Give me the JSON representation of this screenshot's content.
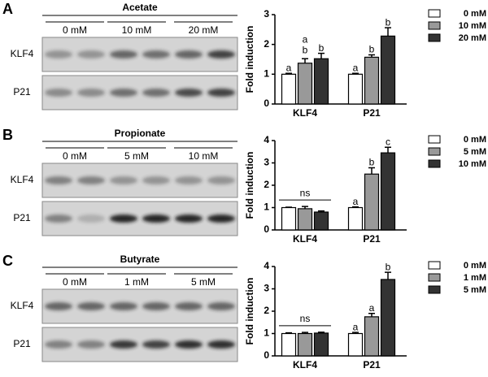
{
  "panels": [
    {
      "letter": "A",
      "treatment": "Acetate",
      "lanes": [
        "0 mM",
        "10 mM",
        "20 mM"
      ],
      "proteins": [
        "KLF4",
        "P21"
      ]
    },
    {
      "letter": "B",
      "treatment": "Propionate",
      "lanes": [
        "0 mM",
        "5 mM",
        "10 mM"
      ],
      "proteins": [
        "KLF4",
        "P21"
      ]
    },
    {
      "letter": "C",
      "treatment": "Butyrate",
      "lanes": [
        "0 mM",
        "1 mM",
        "5 mM"
      ],
      "proteins": [
        "KLF4",
        "P21"
      ]
    }
  ],
  "chart_data": [
    {
      "type": "bar",
      "y_label": "Fold induction",
      "categories": [
        "KLF4",
        "P21"
      ],
      "ylim": [
        0,
        3
      ],
      "yticks": [
        0,
        1,
        2,
        3
      ],
      "series": [
        {
          "name": "0 mM",
          "color": "#ffffff",
          "values": [
            1.0,
            1.0
          ],
          "errors": [
            0.03,
            0.03
          ],
          "letters": [
            "a",
            "a"
          ]
        },
        {
          "name": "10 mM",
          "color": "#999999",
          "values": [
            1.37,
            1.57
          ],
          "errors": [
            0.15,
            0.08
          ],
          "letters": [
            "ab",
            "b"
          ]
        },
        {
          "name": "20 mM",
          "color": "#333333",
          "values": [
            1.52,
            2.28
          ],
          "errors": [
            0.18,
            0.28
          ],
          "letters": [
            "b",
            "b"
          ]
        }
      ]
    },
    {
      "type": "bar",
      "y_label": "Fold induction",
      "categories": [
        "KLF4",
        "P21"
      ],
      "ylim": [
        0,
        4
      ],
      "yticks": [
        0,
        1,
        2,
        3,
        4
      ],
      "group_note": "ns",
      "series": [
        {
          "name": "0 mM",
          "color": "#ffffff",
          "values": [
            1.0,
            1.0
          ],
          "errors": [
            0.02,
            0.03
          ],
          "letters": [
            null,
            "a"
          ]
        },
        {
          "name": "5 mM",
          "color": "#999999",
          "values": [
            0.95,
            2.5
          ],
          "errors": [
            0.1,
            0.28
          ],
          "letters": [
            null,
            "b"
          ]
        },
        {
          "name": "10 mM",
          "color": "#333333",
          "values": [
            0.8,
            3.45
          ],
          "errors": [
            0.05,
            0.25
          ],
          "letters": [
            null,
            "c"
          ]
        }
      ]
    },
    {
      "type": "bar",
      "y_label": "Fold induction",
      "categories": [
        "KLF4",
        "P21"
      ],
      "ylim": [
        0,
        4
      ],
      "yticks": [
        0,
        1,
        2,
        3,
        4
      ],
      "group_note": "ns",
      "series": [
        {
          "name": "0 mM",
          "color": "#ffffff",
          "values": [
            1.0,
            1.0
          ],
          "errors": [
            0.03,
            0.05
          ],
          "letters": [
            null,
            "a"
          ]
        },
        {
          "name": "1 mM",
          "color": "#999999",
          "values": [
            1.0,
            1.75
          ],
          "errors": [
            0.05,
            0.15
          ],
          "letters": [
            null,
            "a"
          ]
        },
        {
          "name": "5 mM",
          "color": "#333333",
          "values": [
            1.02,
            3.42
          ],
          "errors": [
            0.04,
            0.32
          ],
          "letters": [
            null,
            "b"
          ]
        }
      ]
    }
  ]
}
